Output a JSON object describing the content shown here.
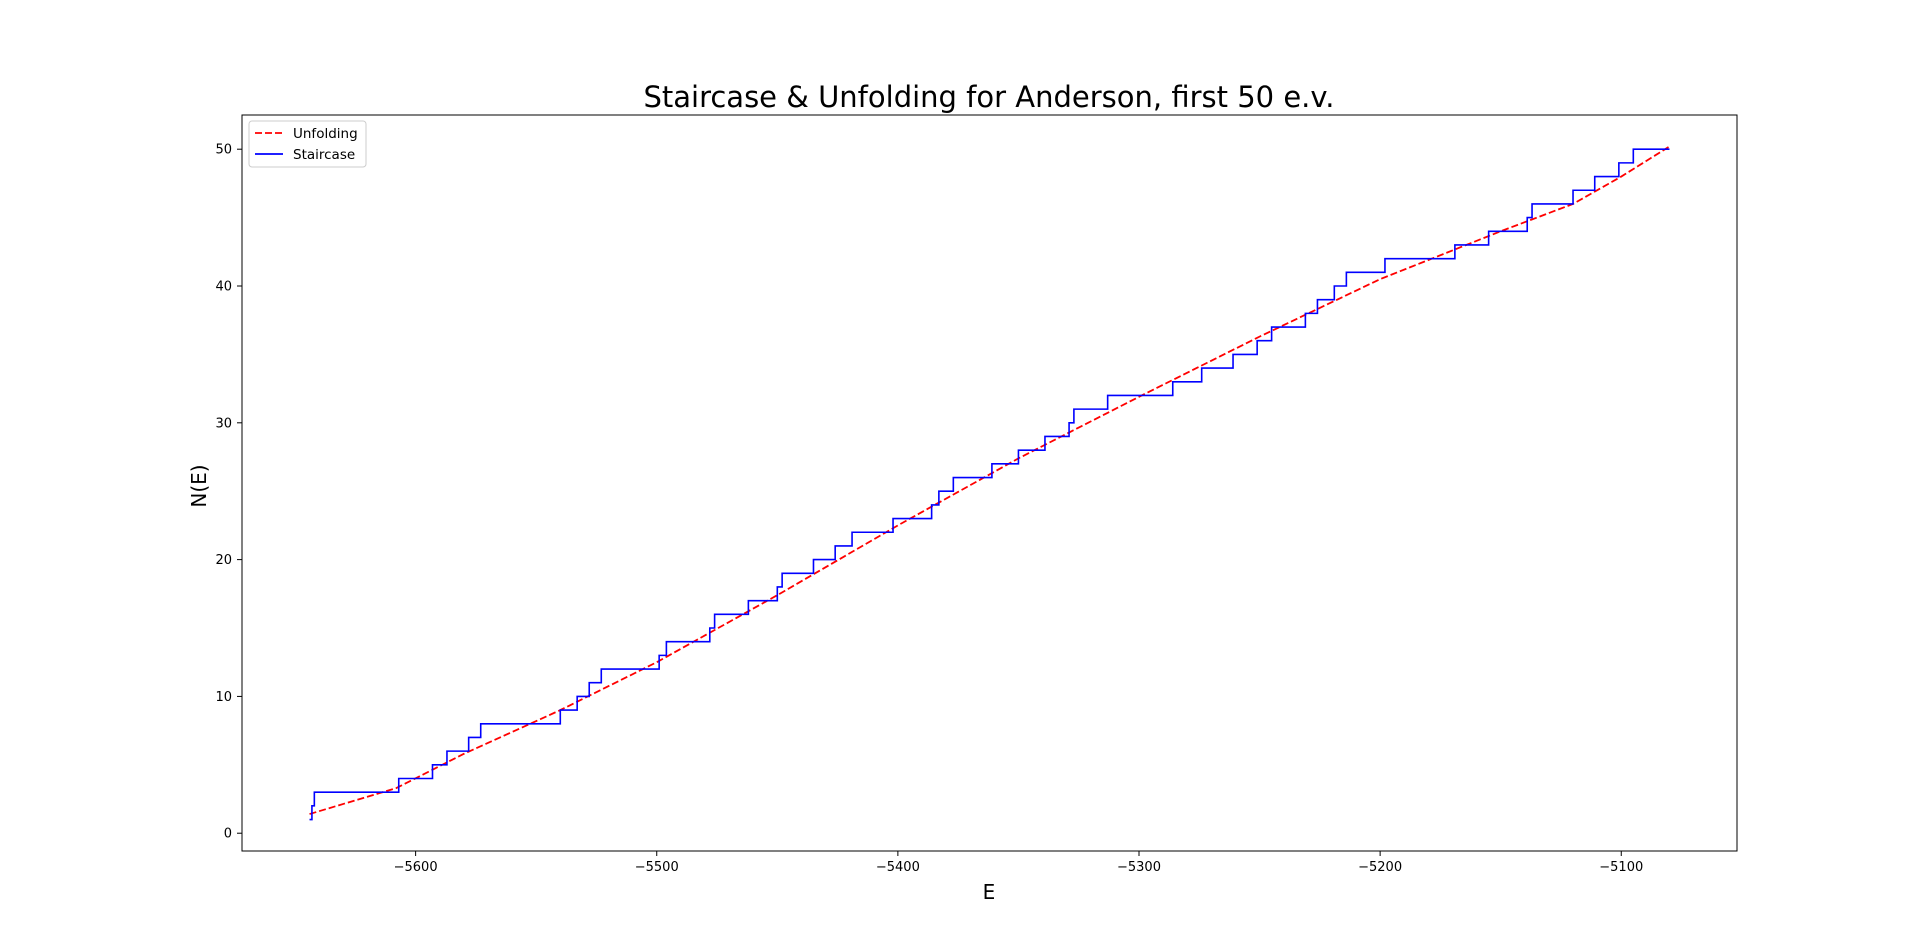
{
  "chart_data": {
    "type": "line",
    "title": "Staircase & Unfolding for Anderson, first 50 e.v.",
    "xlabel": "E",
    "ylabel": "N(E)",
    "xlim": [
      -5672,
      -5052
    ],
    "ylim": [
      -1.3,
      52.5
    ],
    "xticks": [
      -5600,
      -5500,
      -5400,
      -5300,
      -5200,
      -5100
    ],
    "yticks": [
      0,
      10,
      20,
      30,
      40,
      50
    ],
    "xtick_labels": [
      "−5600",
      "−5500",
      "−5400",
      "−5300",
      "−5200",
      "−5100"
    ],
    "ytick_labels": [
      "0",
      "10",
      "20",
      "30",
      "40",
      "50"
    ],
    "grid": false,
    "legend_position": "upper-left",
    "series": [
      {
        "name": "Unfolding",
        "style": "dashed",
        "color": "#ff0000",
        "x": [
          -5644,
          -5608,
          -5580,
          -5540,
          -5500,
          -5450,
          -5400,
          -5350,
          -5300,
          -5250,
          -5200,
          -5150,
          -5120,
          -5100,
          -5080
        ],
        "y": [
          1.4,
          3.3,
          5.8,
          9.0,
          12.5,
          17.4,
          22.5,
          27.4,
          31.9,
          36.3,
          40.5,
          44.0,
          46.0,
          48.0,
          50.2
        ]
      },
      {
        "name": "Staircase",
        "style": "step",
        "color": "#0000ff",
        "x": [
          -5644,
          -5643,
          -5642,
          -5607,
          -5593,
          -5587,
          -5578,
          -5573,
          -5540,
          -5533,
          -5528,
          -5523,
          -5520,
          -5499,
          -5496,
          -5492,
          -5478,
          -5476,
          -5473,
          -5462,
          -5450,
          -5448,
          -5435,
          -5426,
          -5419,
          -5402,
          -5386,
          -5383,
          -5377,
          -5361,
          -5350,
          -5339,
          -5329,
          -5327,
          -5313,
          -5286,
          -5274,
          -5266,
          -5261,
          -5251,
          -5245,
          -5232,
          -5231,
          -5226,
          -5219,
          -5214,
          -5198,
          -5169,
          -5155,
          -5139,
          -5137,
          -5120,
          -5111,
          -5101,
          -5095
        ],
        "y": [
          1,
          2,
          3,
          4,
          5,
          6,
          7,
          8,
          9,
          10,
          11,
          12,
          12,
          13,
          14,
          14,
          15,
          16,
          16,
          17,
          18,
          19,
          20,
          21,
          22,
          23,
          24,
          25,
          26,
          27,
          28,
          29,
          30,
          31,
          32,
          33,
          34,
          34,
          35,
          36,
          37,
          37,
          38,
          39,
          40,
          41,
          42,
          43,
          44,
          45,
          46,
          47,
          48,
          49,
          50
        ],
        "end_x": -5080
      }
    ]
  }
}
